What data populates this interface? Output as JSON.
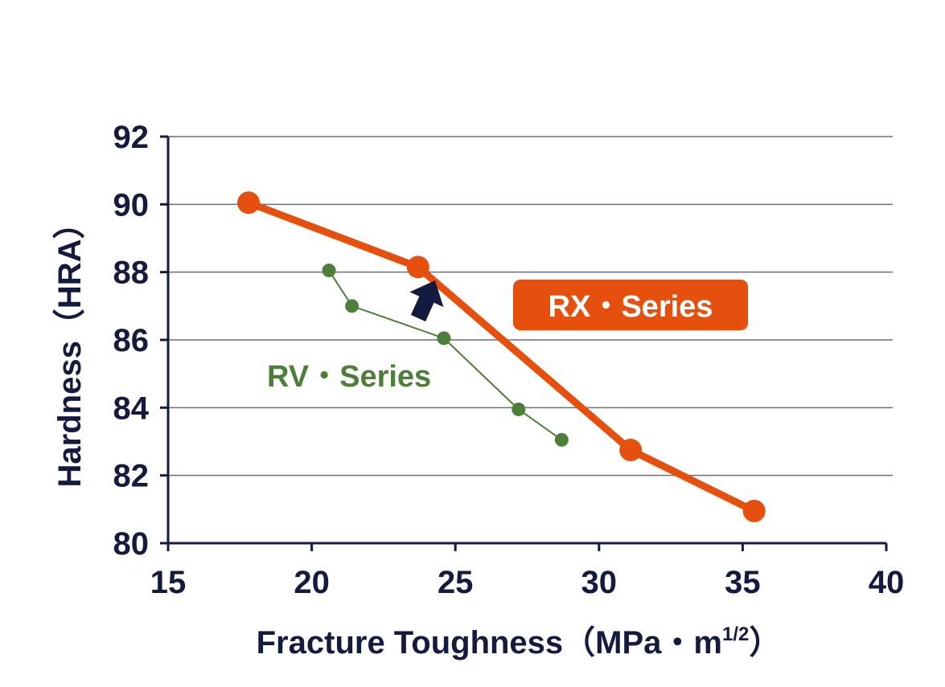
{
  "chart_data": {
    "type": "line",
    "xlabel_main": "Fracture Toughness（MPa・m",
    "xlabel_sup": "1/2",
    "xlabel_close": "）",
    "ylabel": "Hardness（HRA）",
    "xlim": [
      15,
      40
    ],
    "ylim": [
      80,
      92
    ],
    "xticks": [
      15,
      20,
      25,
      30,
      35,
      40
    ],
    "yticks": [
      80,
      82,
      84,
      86,
      88,
      90,
      92
    ],
    "grid": true,
    "series": [
      {
        "name": "RX・Series",
        "color": "#e5500f",
        "x": [
          17.8,
          23.7,
          31.1,
          35.4
        ],
        "y": [
          90.05,
          88.15,
          82.75,
          80.95
        ]
      },
      {
        "name": "RV・Series",
        "color": "#4e7f3a",
        "x": [
          20.6,
          21.4,
          24.6,
          27.2,
          28.7
        ],
        "y": [
          88.05,
          87.0,
          86.05,
          83.95,
          83.05
        ]
      }
    ],
    "annotations": [
      {
        "type": "arrow",
        "icon": "up-right-arrow-icon",
        "color": "#141b3f"
      }
    ]
  }
}
